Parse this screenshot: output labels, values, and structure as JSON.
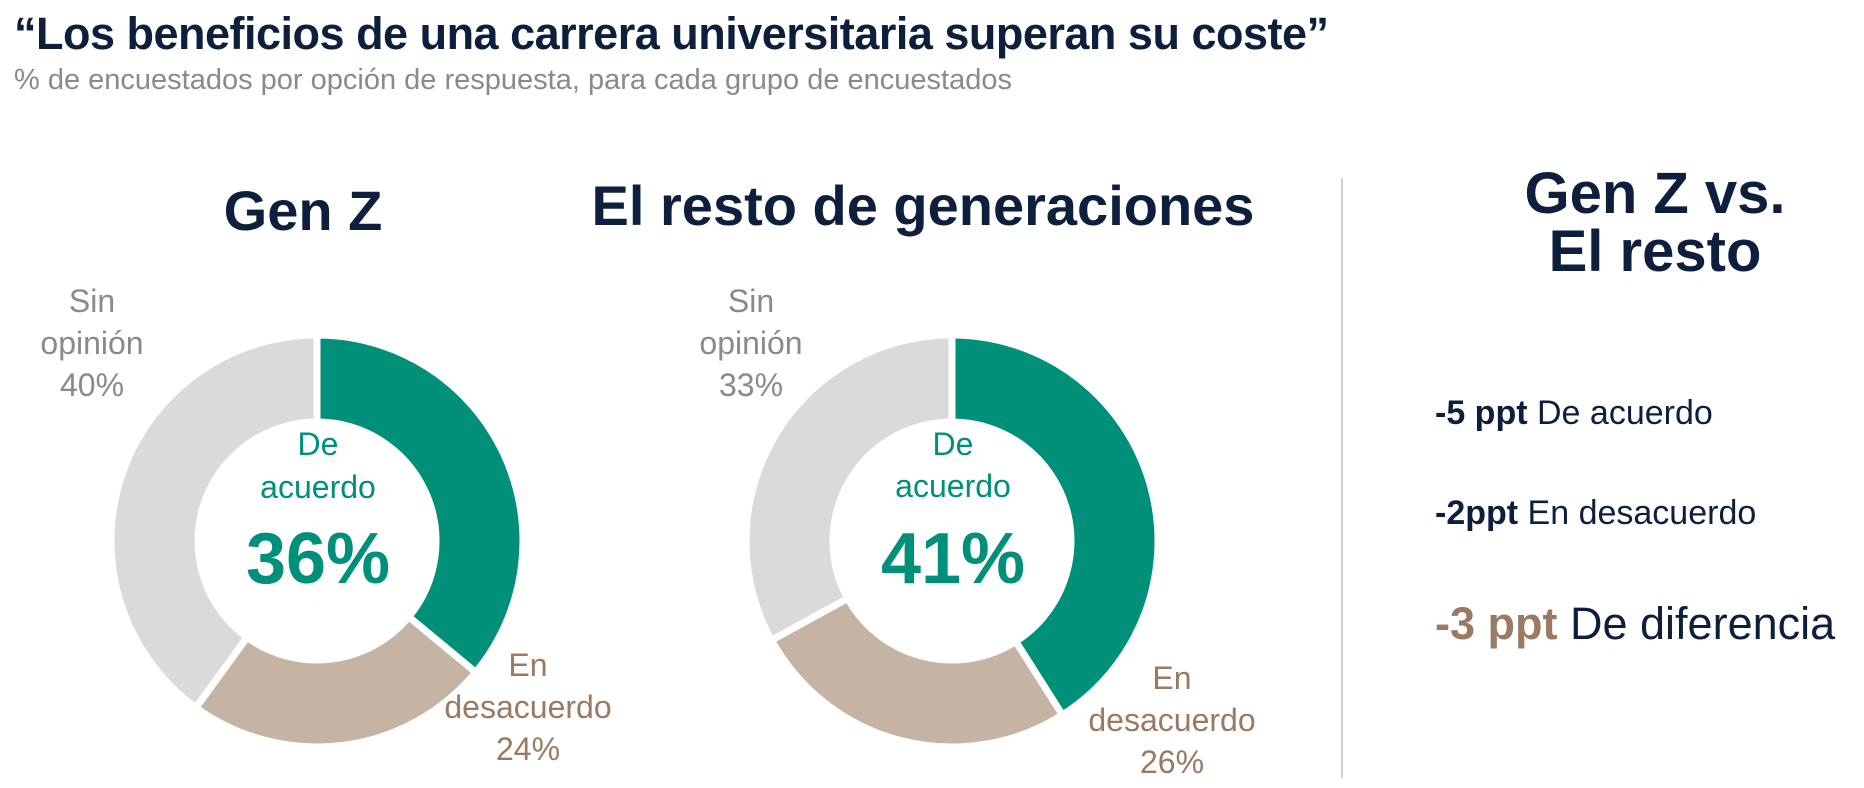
{
  "title": "“Los beneficios de una carrera universitaria superan su coste”",
  "subtitle": "% de encuestados por opción de respuesta, para cada grupo de encuestados",
  "colors": {
    "agree": "#00907a",
    "disagree": "#c5b3a3",
    "no_opinion": "#dadada",
    "disagree_text": "#9a7a63",
    "no_opinion_text": "#8a8a8a",
    "navy": "#0e1f3d"
  },
  "chart_data": [
    {
      "type": "pie",
      "title": "Gen Z",
      "categories": [
        "De acuerdo",
        "En desacuerdo",
        "Sin opinión"
      ],
      "values": [
        36,
        24,
        40
      ],
      "labels": {
        "agree": [
          "De",
          "acuerdo",
          "36%"
        ],
        "disagree": [
          "En",
          "desacuerdo",
          "24%"
        ],
        "no_opinion": [
          "Sin",
          "opinión",
          "40%"
        ]
      }
    },
    {
      "type": "pie",
      "title": "El resto de generaciones",
      "categories": [
        "De acuerdo",
        "En desacuerdo",
        "Sin opinión"
      ],
      "values": [
        41,
        26,
        33
      ],
      "labels": {
        "agree": [
          "De",
          "acuerdo",
          "41%"
        ],
        "disagree": [
          "En",
          "desacuerdo",
          "26%"
        ],
        "no_opinion": [
          "Sin",
          "opinión",
          "33%"
        ]
      }
    }
  ],
  "comparison": {
    "title_line1": "Gen Z vs.",
    "title_line2": "El resto",
    "rows": [
      {
        "value": "-5 ppt",
        "label": "De acuerdo"
      },
      {
        "value": "-2ppt",
        "label": "En desacuerdo"
      },
      {
        "value": "-3 ppt",
        "label": "De diferencia"
      }
    ]
  }
}
